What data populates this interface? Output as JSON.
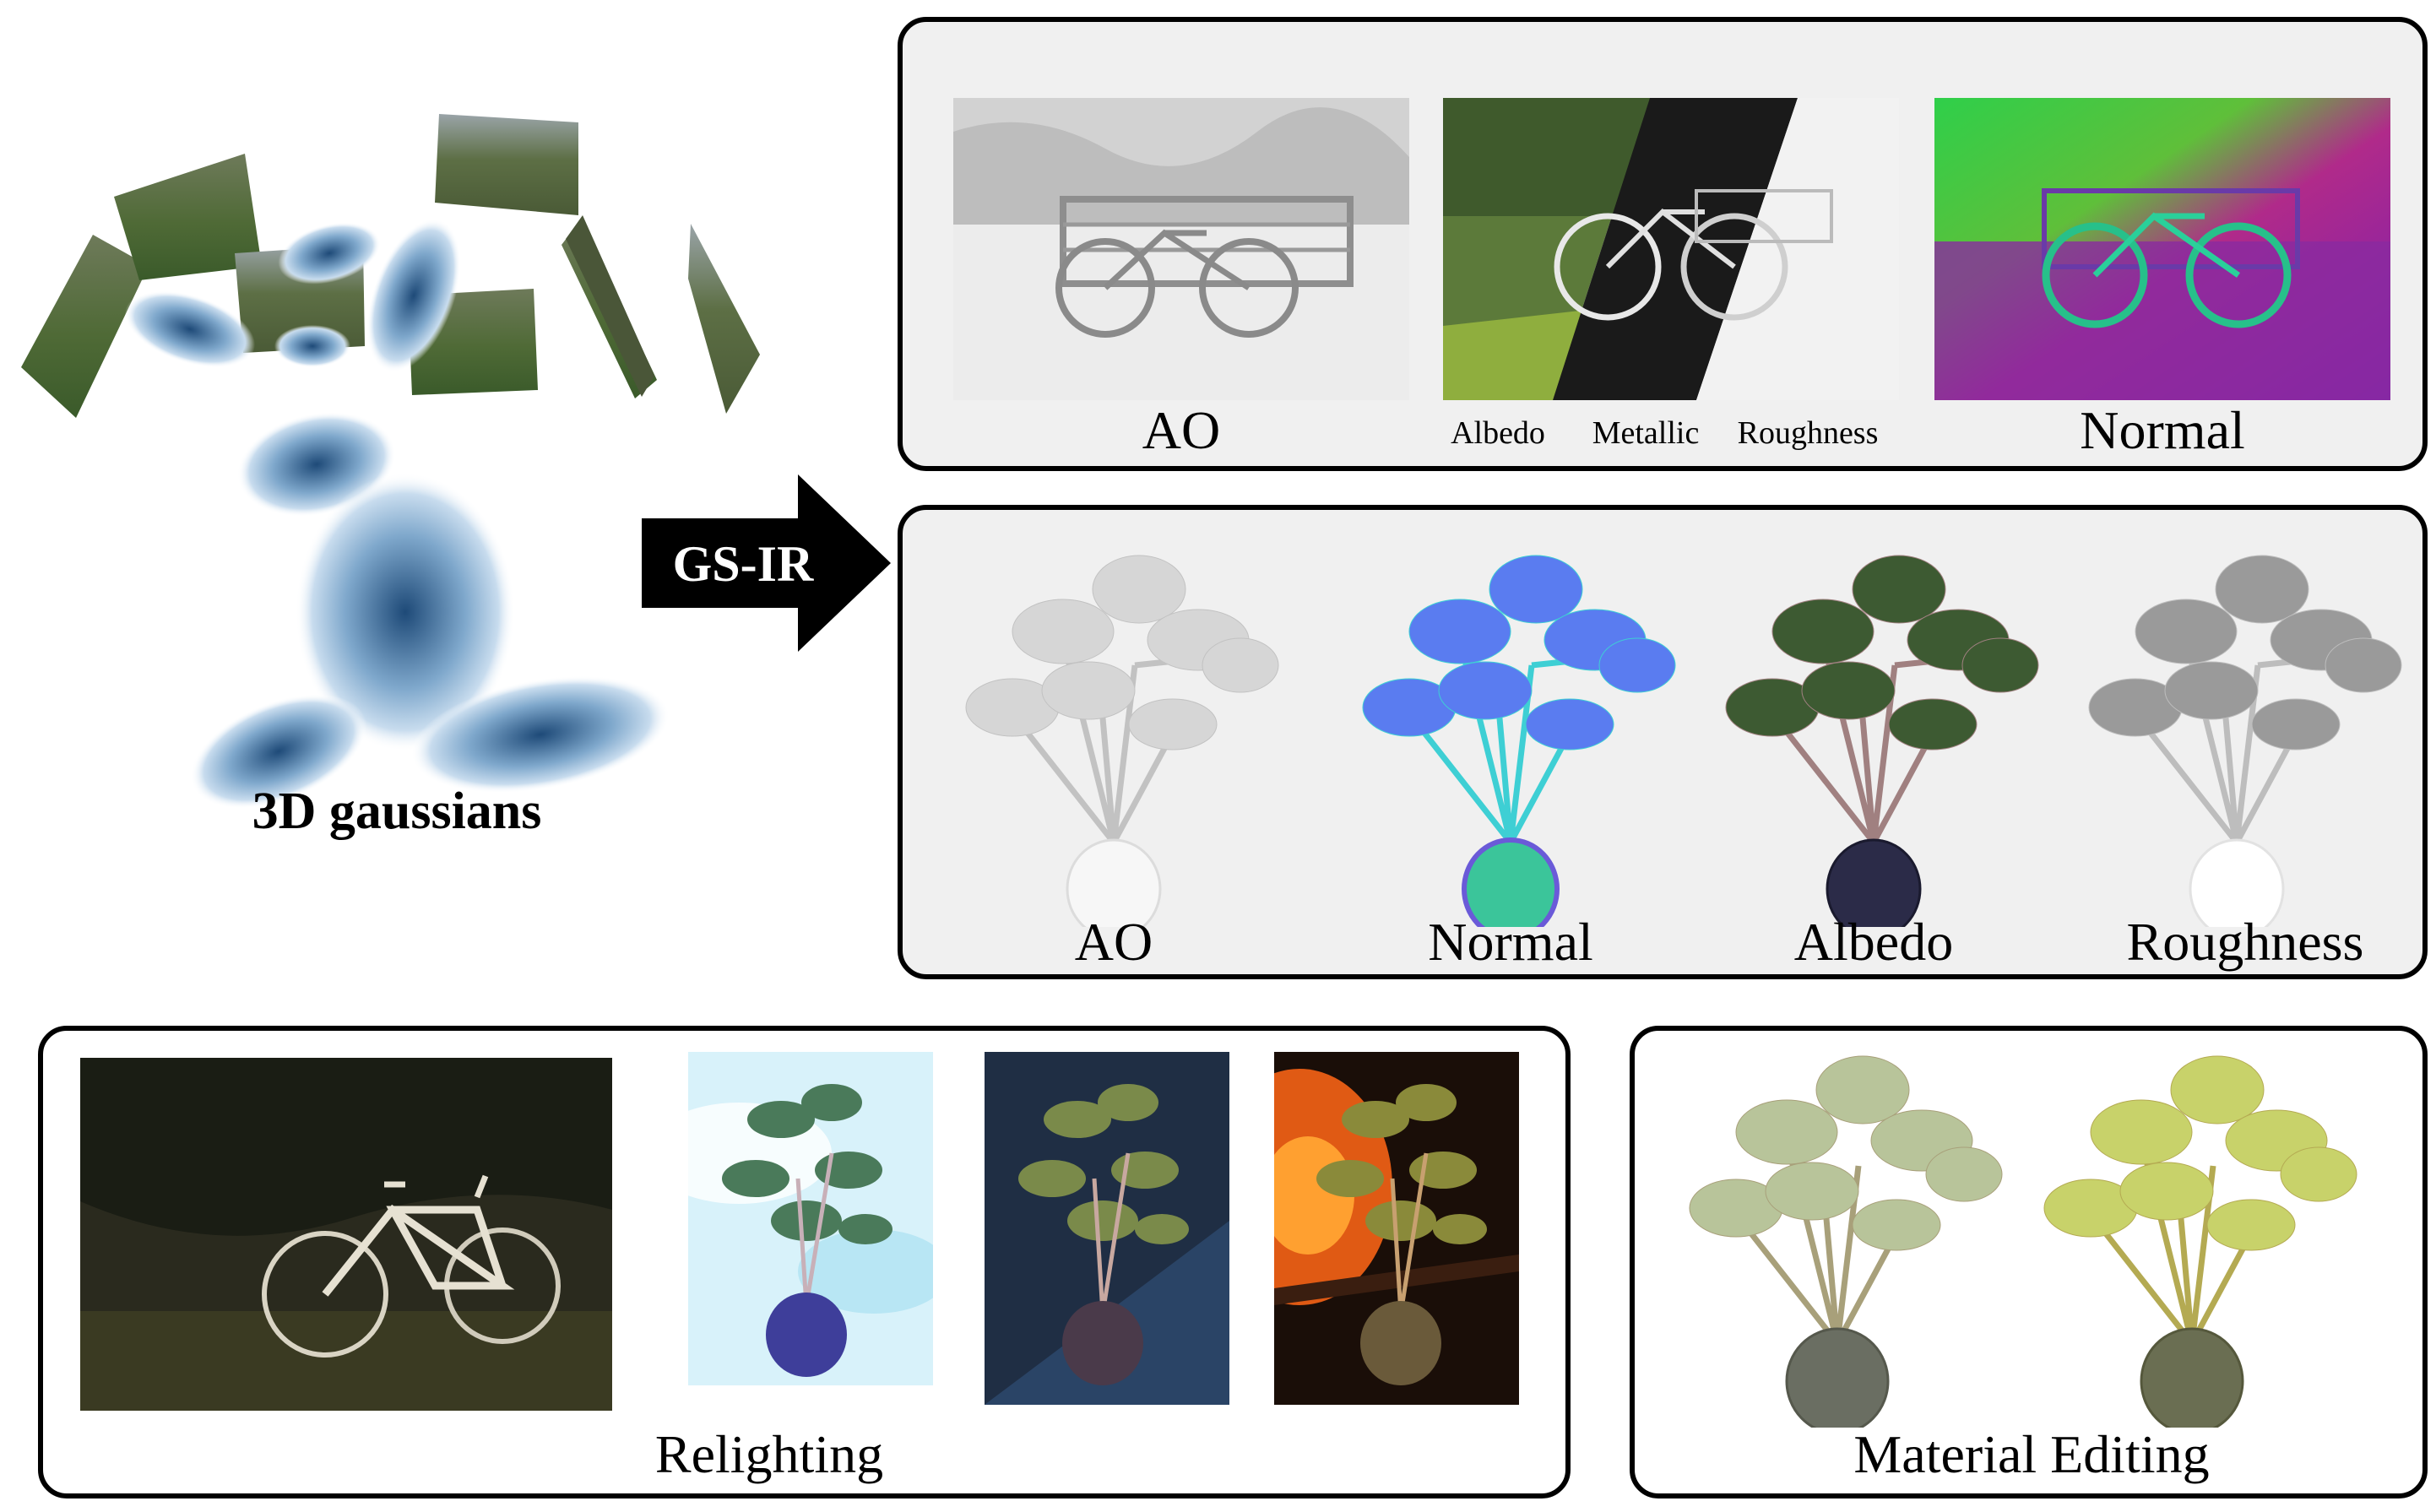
{
  "left": {
    "caption": "3D gaussians"
  },
  "arrow": {
    "label": "GS-IR"
  },
  "scene_panel": {
    "labels": {
      "ao": "AO",
      "albedo": "Albedo",
      "metallic": "Metallic",
      "roughness": "Roughness",
      "normal": "Normal"
    }
  },
  "object_panel": {
    "labels": [
      "AO",
      "Normal",
      "Albedo",
      "Roughness"
    ]
  },
  "relighting_panel": {
    "label": "Relighting"
  },
  "material_panel": {
    "label": "Material Editing"
  }
}
